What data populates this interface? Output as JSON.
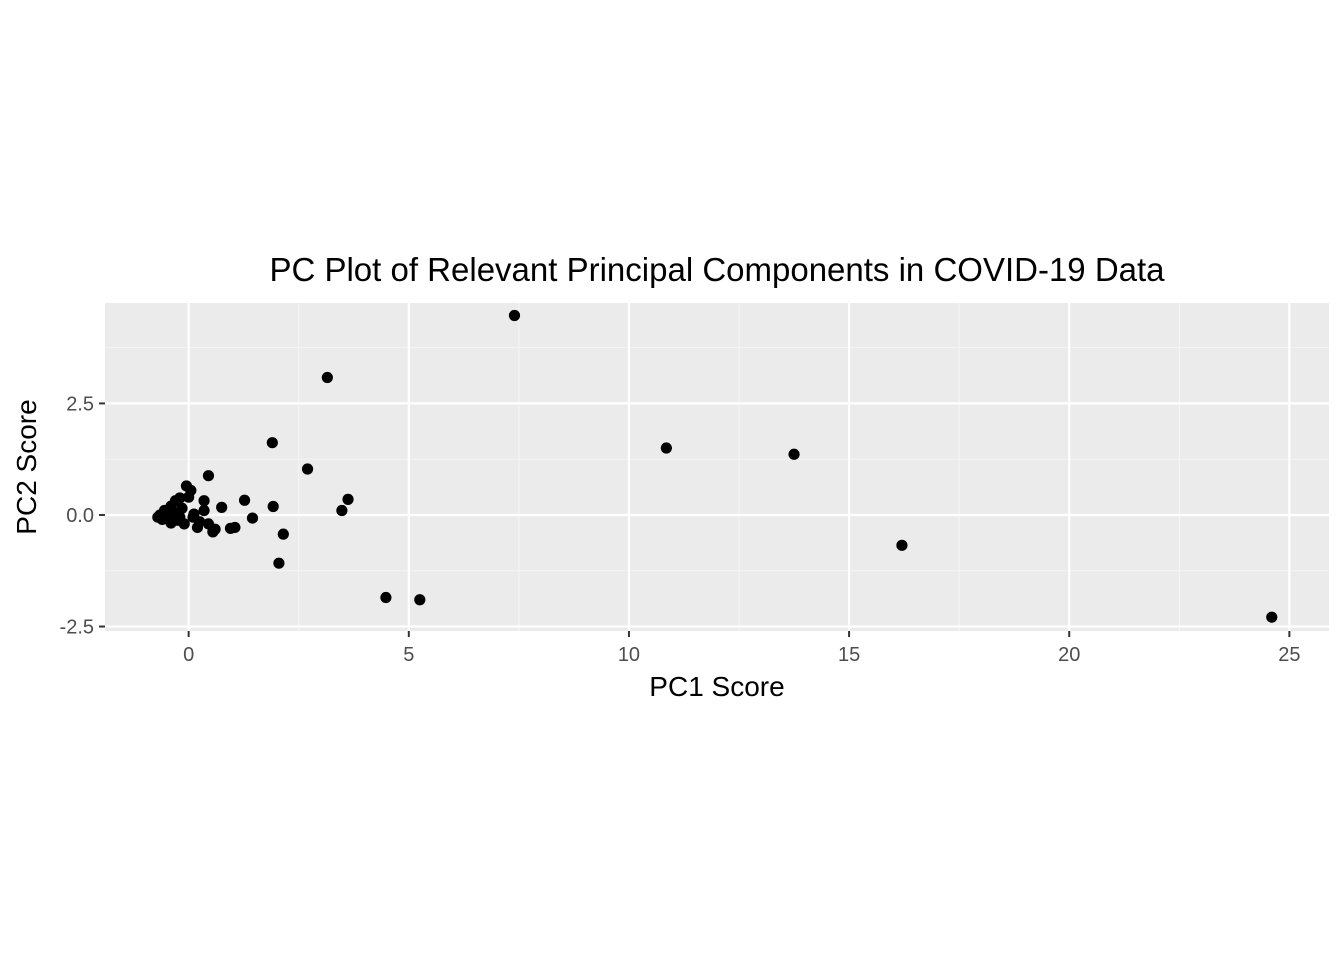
{
  "chart_data": {
    "type": "scatter",
    "title": "PC Plot of Relevant Principal Components in COVID-19 Data",
    "xlabel": "PC1 Score",
    "ylabel": "PC2 Score",
    "xlim": [
      -1.9,
      25.9
    ],
    "ylim": [
      -2.6,
      4.75
    ],
    "x_ticks": [
      0,
      5,
      10,
      15,
      20,
      25
    ],
    "x_tick_labels": [
      "0",
      "5",
      "10",
      "15",
      "20",
      "25"
    ],
    "x_minor_ticks": [
      2.5,
      7.5,
      12.5,
      17.5,
      22.5
    ],
    "y_ticks": [
      -2.5,
      0,
      2.5
    ],
    "y_tick_labels": [
      "-2.5",
      "0.0",
      "2.5"
    ],
    "y_minor_ticks": [
      -1.25,
      1.25,
      3.75
    ],
    "grid": true,
    "legend": "none",
    "colors": {
      "panel_background": "#ebebeb",
      "grid_major": "#ffffff",
      "grid_minor": "#f5f5f5",
      "point": "#000000",
      "tick_label": "#4d4d4d",
      "axis_tick": "#333333"
    },
    "series": [
      {
        "points": [
          [
            7.4,
            4.47
          ],
          [
            3.15,
            3.08
          ],
          [
            1.9,
            1.62
          ],
          [
            10.85,
            1.5
          ],
          [
            13.75,
            1.36
          ],
          [
            2.7,
            1.03
          ],
          [
            0.45,
            0.88
          ],
          [
            -0.05,
            0.65
          ],
          [
            0.05,
            0.55
          ],
          [
            -0.2,
            0.38
          ],
          [
            -0.3,
            0.32
          ],
          [
            0.35,
            0.32
          ],
          [
            1.27,
            0.33
          ],
          [
            3.62,
            0.35
          ],
          [
            1.92,
            0.19
          ],
          [
            0.75,
            0.17
          ],
          [
            3.48,
            0.1
          ],
          [
            0.35,
            0.1
          ],
          [
            -0.15,
            0.15
          ],
          [
            -0.4,
            0.2
          ],
          [
            -0.55,
            0.1
          ],
          [
            -0.65,
            0.0
          ],
          [
            -0.7,
            -0.05
          ],
          [
            -0.6,
            -0.1
          ],
          [
            -0.45,
            -0.1
          ],
          [
            -0.4,
            -0.18
          ],
          [
            -0.25,
            -0.12
          ],
          [
            -0.1,
            -0.2
          ],
          [
            0.1,
            -0.05
          ],
          [
            0.2,
            -0.28
          ],
          [
            0.45,
            -0.2
          ],
          [
            0.55,
            -0.38
          ],
          [
            0.95,
            -0.3
          ],
          [
            1.05,
            -0.28
          ],
          [
            1.45,
            -0.07
          ],
          [
            2.15,
            -0.43
          ],
          [
            2.05,
            -1.08
          ],
          [
            16.2,
            -0.68
          ],
          [
            4.48,
            -1.85
          ],
          [
            5.25,
            -1.9
          ],
          [
            24.6,
            -2.29
          ],
          [
            0.0,
            0.4
          ],
          [
            -0.35,
            0.05
          ],
          [
            0.25,
            -0.15
          ],
          [
            -0.5,
            -0.02
          ],
          [
            0.12,
            0.02
          ],
          [
            -0.2,
            -0.05
          ],
          [
            0.6,
            -0.32
          ]
        ]
      }
    ]
  }
}
